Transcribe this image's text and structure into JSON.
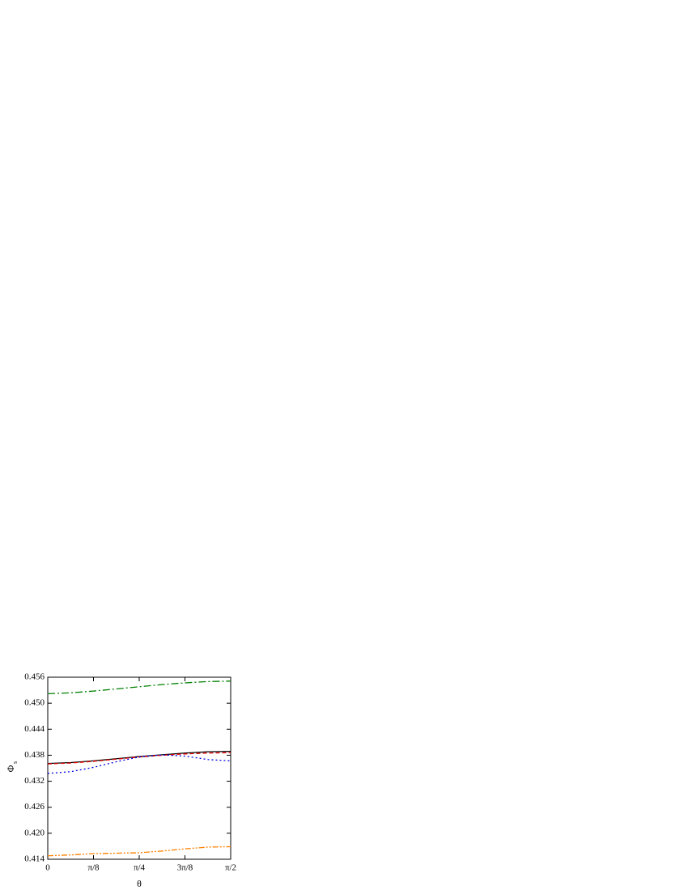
{
  "chart_data": {
    "type": "line",
    "xlabel": "θ",
    "ylabel": "Φ",
    "ylabel_subscript": "s",
    "x": [
      0,
      0.19635,
      0.3927,
      0.58905,
      0.7854,
      0.98175,
      1.1781,
      1.37445,
      1.5708
    ],
    "series": [
      {
        "color": "#008000",
        "dash": "9 3 2 3",
        "values": [
          0.4522,
          0.4524,
          0.4528,
          0.4533,
          0.4538,
          0.4543,
          0.4547,
          0.455,
          0.4551
        ]
      },
      {
        "color": "#000000",
        "dash": "none",
        "values": [
          0.4361,
          0.4363,
          0.4367,
          0.4372,
          0.4377,
          0.4381,
          0.4385,
          0.4388,
          0.4389
        ]
      },
      {
        "color": "#e00000",
        "dash": "5 3",
        "values": [
          0.436,
          0.4362,
          0.4366,
          0.4371,
          0.4376,
          0.438,
          0.4383,
          0.4385,
          0.4386
        ]
      },
      {
        "color": "#0000e0",
        "dash": "2 3",
        "values": [
          0.4338,
          0.4342,
          0.4352,
          0.4365,
          0.4376,
          0.4381,
          0.4378,
          0.437,
          0.4367
        ]
      },
      {
        "color": "#ff8000",
        "dash": "7 2 2 2 2 2",
        "values": [
          0.4148,
          0.415,
          0.4153,
          0.4154,
          0.4155,
          0.4159,
          0.4164,
          0.4168,
          0.4169
        ]
      }
    ],
    "xlim": [
      0,
      1.5708
    ],
    "xticks": [
      0,
      {
        "value": 0.3927,
        "label": "π/8"
      },
      {
        "value": 0.7854,
        "label": "π/4"
      },
      {
        "value": 1.1781,
        "label": "3π/8"
      },
      {
        "value": 1.5708,
        "label": "π/2"
      }
    ],
    "ylim": [
      0.414,
      0.456
    ],
    "yticks": [
      0.414,
      {
        "value": 0.42,
        "label": "0.420"
      },
      0.426,
      0.432,
      0.438,
      0.444,
      {
        "value": 0.45,
        "label": "0.450"
      },
      0.456
    ],
    "grid": false
  }
}
